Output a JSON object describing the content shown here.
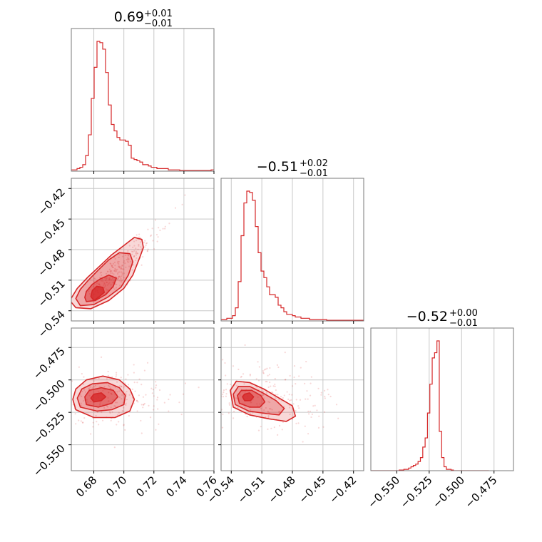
{
  "chart_data": {
    "type": "corner",
    "grid": true,
    "color": "#d62728",
    "titles": [
      {
        "median": "0.69",
        "plus": "+0.01",
        "minus": "−0.01"
      },
      {
        "median": "−0.51",
        "plus": "+0.02",
        "minus": "−0.01"
      },
      {
        "median": "−0.52",
        "plus": "+0.00",
        "minus": "−0.01"
      }
    ],
    "params": [
      {
        "range": [
          0.665,
          0.76
        ],
        "ticks": [
          0.68,
          0.7,
          0.72,
          0.74,
          0.76
        ],
        "tick_labels": [
          "0.68",
          "0.70",
          "0.72",
          "0.74",
          "0.76"
        ]
      },
      {
        "range": [
          -0.55,
          -0.41
        ],
        "ticks": [
          -0.54,
          -0.51,
          -0.48,
          -0.45,
          -0.42
        ],
        "tick_labels": [
          "−0.54",
          "−0.51",
          "−0.48",
          "−0.45",
          "−0.42"
        ]
      },
      {
        "range": [
          -0.57,
          -0.46
        ],
        "ticks": [
          -0.55,
          -0.525,
          -0.5,
          -0.475
        ],
        "tick_labels": [
          "−0.550",
          "−0.525",
          "−0.500",
          "−0.475"
        ]
      }
    ],
    "histograms": [
      {
        "start": 0.665,
        "width": 0.0019,
        "counts": [
          1,
          1,
          2,
          3,
          5,
          12,
          28,
          56,
          80,
          100,
          99,
          94,
          76,
          51,
          36,
          31,
          26,
          24,
          24,
          23,
          20,
          10,
          9,
          8,
          7,
          5,
          5,
          4,
          3,
          3,
          2,
          2,
          2,
          2,
          1,
          1,
          1,
          1,
          0.5,
          0.5,
          0.5,
          0.5,
          0.5,
          0.5,
          0.5,
          0.5,
          0.5,
          0.5,
          0.5,
          1
        ]
      },
      {
        "start": -0.55,
        "width": 0.0028,
        "counts": [
          1,
          1,
          2,
          2,
          4,
          10,
          30,
          65,
          90,
          99,
          98,
          92,
          72,
          52,
          38,
          33,
          26,
          20,
          20,
          18,
          12,
          10,
          7,
          5,
          5,
          4,
          3,
          3,
          2,
          2,
          2,
          1,
          1,
          1,
          1,
          1,
          1,
          0.5,
          0.5,
          0.5,
          0.5,
          0.5,
          0.5,
          0.5,
          0.5,
          0.5,
          0.5,
          0.5,
          0.5,
          0.5
        ]
      },
      {
        "start": -0.57,
        "width": 0.00182,
        "counts": [
          0,
          0,
          0,
          0,
          0,
          0,
          0,
          0,
          0,
          0,
          0,
          0,
          0.5,
          0.5,
          1,
          1,
          2,
          3,
          4,
          5,
          7,
          10,
          18,
          25,
          44,
          66,
          86,
          90,
          99,
          30,
          10,
          3,
          1,
          1,
          0.5,
          0,
          0,
          0,
          0,
          0,
          0,
          0,
          0,
          0,
          0,
          0,
          0,
          0,
          0,
          0
        ]
      }
    ],
    "pairs": [
      {
        "row": 1,
        "col": 0,
        "center": [
          0.683,
          -0.523
        ],
        "contours": [
          [
            [
              0.68,
              -0.53
            ],
            [
              0.683,
              -0.527
            ],
            [
              0.687,
              -0.522
            ],
            [
              0.686,
              -0.517
            ],
            [
              0.682,
              -0.516
            ],
            [
              0.679,
              -0.52
            ],
            [
              0.678,
              -0.526
            ]
          ],
          [
            [
              0.675,
              -0.531
            ],
            [
              0.681,
              -0.53
            ],
            [
              0.688,
              -0.524
            ],
            [
              0.693,
              -0.516
            ],
            [
              0.695,
              -0.508
            ],
            [
              0.69,
              -0.505
            ],
            [
              0.684,
              -0.509
            ],
            [
              0.679,
              -0.514
            ],
            [
              0.675,
              -0.521
            ],
            [
              0.674,
              -0.527
            ]
          ],
          [
            [
              0.671,
              -0.535
            ],
            [
              0.68,
              -0.534
            ],
            [
              0.689,
              -0.527
            ],
            [
              0.698,
              -0.517
            ],
            [
              0.703,
              -0.505
            ],
            [
              0.706,
              -0.492
            ],
            [
              0.704,
              -0.484
            ],
            [
              0.697,
              -0.483
            ],
            [
              0.69,
              -0.49
            ],
            [
              0.683,
              -0.5
            ],
            [
              0.677,
              -0.509
            ],
            [
              0.671,
              -0.519
            ],
            [
              0.668,
              -0.528
            ]
          ],
          [
            [
              0.668,
              -0.537
            ],
            [
              0.678,
              -0.538
            ],
            [
              0.69,
              -0.53
            ],
            [
              0.7,
              -0.518
            ],
            [
              0.706,
              -0.505
            ],
            [
              0.71,
              -0.49
            ],
            [
              0.713,
              -0.478
            ],
            [
              0.712,
              -0.47
            ],
            [
              0.707,
              -0.468
            ],
            [
              0.7,
              -0.476
            ],
            [
              0.692,
              -0.485
            ],
            [
              0.684,
              -0.496
            ],
            [
              0.676,
              -0.507
            ],
            [
              0.669,
              -0.518
            ],
            [
              0.664,
              -0.53
            ]
          ]
        ]
      },
      {
        "row": 2,
        "col": 0,
        "center": [
          0.683,
          -0.514
        ],
        "contours": [
          [
            [
              0.68,
              -0.517
            ],
            [
              0.685,
              -0.516
            ],
            [
              0.688,
              -0.513
            ],
            [
              0.685,
              -0.51
            ],
            [
              0.68,
              -0.511
            ],
            [
              0.678,
              -0.514
            ]
          ],
          [
            [
              0.675,
              -0.519
            ],
            [
              0.683,
              -0.521
            ],
            [
              0.692,
              -0.518
            ],
            [
              0.696,
              -0.513
            ],
            [
              0.693,
              -0.508
            ],
            [
              0.685,
              -0.506
            ],
            [
              0.677,
              -0.508
            ],
            [
              0.674,
              -0.513
            ]
          ],
          [
            [
              0.671,
              -0.521
            ],
            [
              0.682,
              -0.524
            ],
            [
              0.692,
              -0.523
            ],
            [
              0.7,
              -0.519
            ],
            [
              0.701,
              -0.512
            ],
            [
              0.697,
              -0.506
            ],
            [
              0.689,
              -0.502
            ],
            [
              0.679,
              -0.503
            ],
            [
              0.672,
              -0.507
            ],
            [
              0.669,
              -0.514
            ]
          ],
          [
            [
              0.668,
              -0.523
            ],
            [
              0.68,
              -0.529
            ],
            [
              0.694,
              -0.529
            ],
            [
              0.704,
              -0.524
            ],
            [
              0.707,
              -0.515
            ],
            [
              0.704,
              -0.507
            ],
            [
              0.697,
              -0.5
            ],
            [
              0.686,
              -0.497
            ],
            [
              0.675,
              -0.5
            ],
            [
              0.668,
              -0.507
            ],
            [
              0.666,
              -0.515
            ]
          ]
        ]
      },
      {
        "row": 2,
        "col": 1,
        "center": [
          -0.522,
          -0.513
        ],
        "contours": [
          [
            [
              -0.527,
              -0.516
            ],
            [
              -0.521,
              -0.516
            ],
            [
              -0.518,
              -0.513
            ],
            [
              -0.522,
              -0.51
            ],
            [
              -0.527,
              -0.511
            ],
            [
              -0.529,
              -0.513
            ]
          ],
          [
            [
              -0.532,
              -0.518
            ],
            [
              -0.522,
              -0.521
            ],
            [
              -0.512,
              -0.521
            ],
            [
              -0.507,
              -0.517
            ],
            [
              -0.511,
              -0.512
            ],
            [
              -0.52,
              -0.508
            ],
            [
              -0.53,
              -0.508
            ],
            [
              -0.534,
              -0.512
            ]
          ],
          [
            [
              -0.536,
              -0.519
            ],
            [
              -0.523,
              -0.524
            ],
            [
              -0.505,
              -0.526
            ],
            [
              -0.493,
              -0.527
            ],
            [
              -0.488,
              -0.522
            ],
            [
              -0.496,
              -0.516
            ],
            [
              -0.509,
              -0.51
            ],
            [
              -0.522,
              -0.505
            ],
            [
              -0.533,
              -0.505
            ],
            [
              -0.538,
              -0.511
            ]
          ],
          [
            [
              -0.538,
              -0.521
            ],
            [
              -0.522,
              -0.527
            ],
            [
              -0.503,
              -0.53
            ],
            [
              -0.486,
              -0.532
            ],
            [
              -0.477,
              -0.528
            ],
            [
              -0.48,
              -0.52
            ],
            [
              -0.493,
              -0.514
            ],
            [
              -0.508,
              -0.507
            ],
            [
              -0.522,
              -0.502
            ],
            [
              -0.535,
              -0.501
            ],
            [
              -0.541,
              -0.508
            ]
          ]
        ]
      }
    ]
  }
}
